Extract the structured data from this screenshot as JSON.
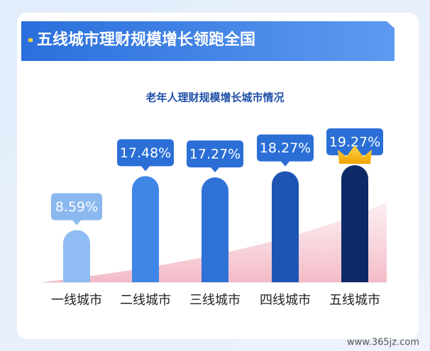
{
  "header": {
    "title": "五线城市理财规模增长领跑全国"
  },
  "chart_data": {
    "type": "bar",
    "title": "老年人理财规模增长城市情况",
    "categories": [
      "一线城市",
      "二线城市",
      "三线城市",
      "四线城市",
      "五线城市"
    ],
    "values": [
      8.59,
      17.48,
      17.27,
      18.27,
      19.27
    ],
    "value_labels": [
      "8.59%",
      "17.48%",
      "17.27%",
      "18.27%",
      "19.27%"
    ],
    "colors": [
      "#8fbcf2",
      "#3f86e6",
      "#2f72d6",
      "#1e55b5",
      "#0d2a66"
    ]
  },
  "watermark": "www.365jz.com"
}
